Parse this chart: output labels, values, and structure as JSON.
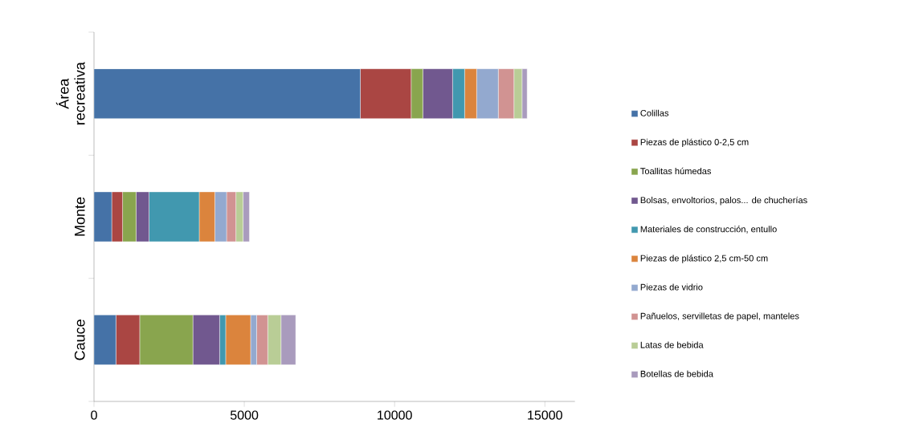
{
  "chart_data": {
    "type": "bar",
    "orientation": "horizontal",
    "stacked": true,
    "legend": "right",
    "categories": [
      "Área recreativa",
      "Monte",
      "Cauce"
    ],
    "xlim": [
      0,
      16000
    ],
    "xticks": [
      0,
      5000,
      10000,
      15000
    ],
    "series": [
      {
        "name": "Colillas",
        "color": "#4572a7",
        "values": [
          8860,
          590,
          730
        ]
      },
      {
        "name": "Piezas de plástico 0-2,5 cm",
        "color": "#aa4643",
        "values": [
          1690,
          360,
          790
        ]
      },
      {
        "name": "Toallitas húmedas",
        "color": "#89a54e",
        "values": [
          390,
          450,
          1770
        ]
      },
      {
        "name": "Bolsas, envoltorios, palos... de chucherías",
        "color": "#71588f",
        "values": [
          990,
          430,
          890
        ]
      },
      {
        "name": "Materiales de construcción, entullo",
        "color": "#4198af",
        "values": [
          400,
          1670,
          200
        ]
      },
      {
        "name": "Piezas de plástico 2,5 cm-50 cm",
        "color": "#db843d",
        "values": [
          400,
          520,
          830
        ]
      },
      {
        "name": "Piezas de vidrio",
        "color": "#93a9cf",
        "values": [
          720,
          390,
          200
        ]
      },
      {
        "name": "Pañuelos, servilletas de papel, manteles",
        "color": "#d19392",
        "values": [
          520,
          310,
          370
        ]
      },
      {
        "name": "Latas de bebida",
        "color": "#b9cd96",
        "values": [
          270,
          240,
          440
        ]
      },
      {
        "name": "Botellas de bebida",
        "color": "#a99bbd",
        "values": [
          170,
          210,
          490
        ]
      }
    ]
  }
}
